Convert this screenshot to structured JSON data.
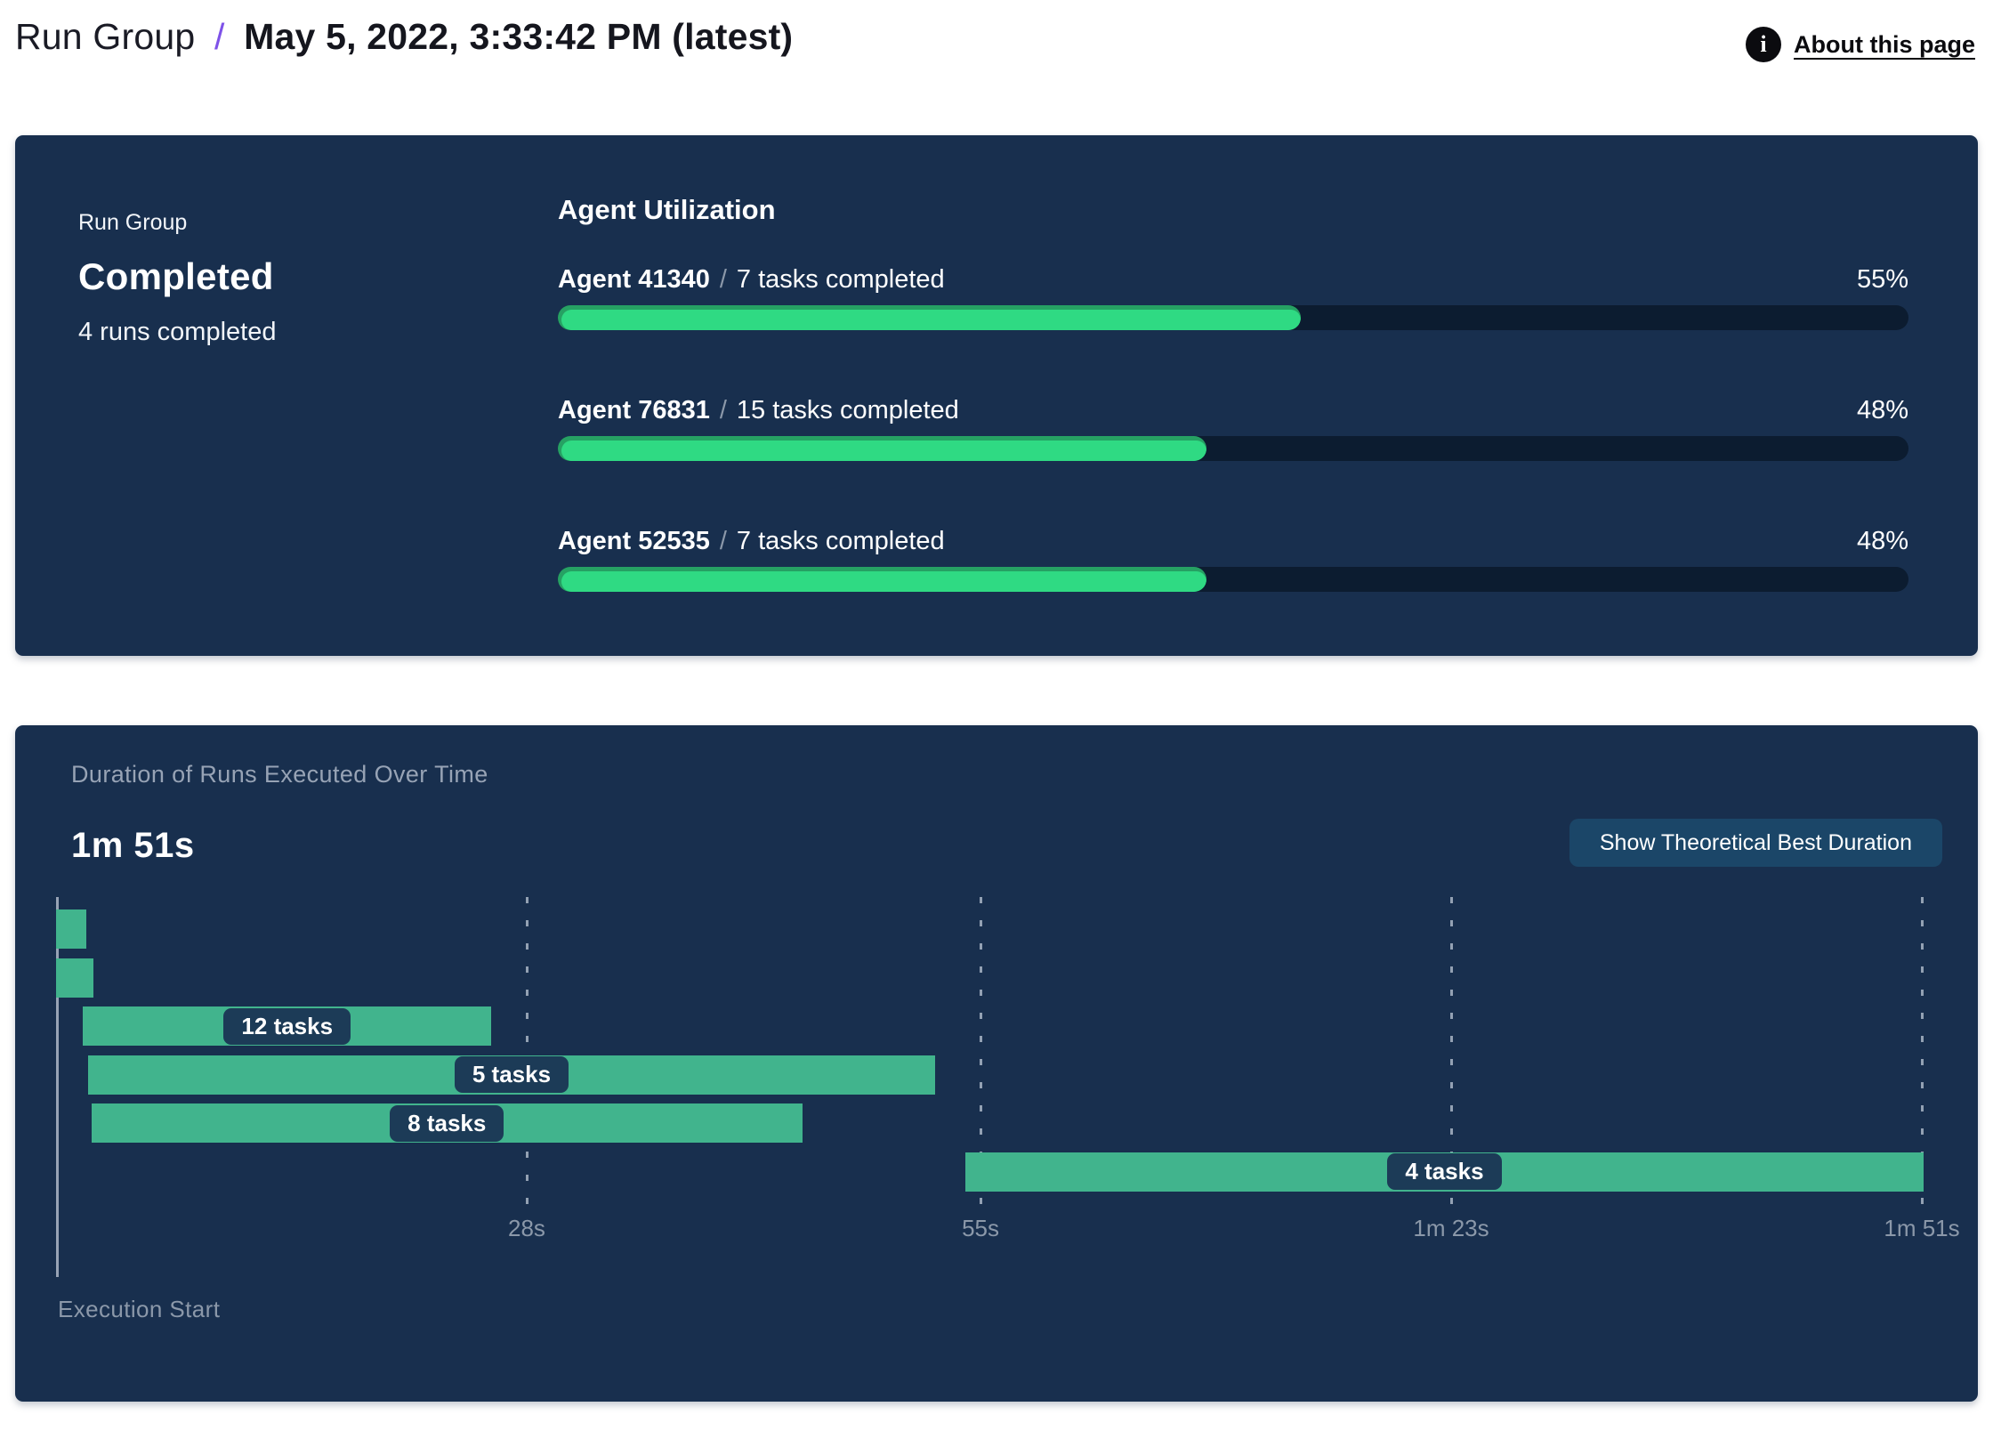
{
  "header": {
    "breadcrumb_root": "Run Group",
    "separator": "/",
    "title": "May 5, 2022, 3:33:42 PM (latest)",
    "about_link": "About this page",
    "info_icon_glyph": "i"
  },
  "status_card": {
    "label": "Run Group",
    "status": "Completed",
    "runs_completed": "4 runs completed"
  },
  "agent_utilization": {
    "title": "Agent Utilization",
    "agents": [
      {
        "name": "Agent 41340",
        "separator": "/",
        "tasks": "7 tasks completed",
        "percent": 55,
        "percent_label": "55%"
      },
      {
        "name": "Agent 76831",
        "separator": "/",
        "tasks": "15 tasks completed",
        "percent": 48,
        "percent_label": "48%"
      },
      {
        "name": "Agent 52535",
        "separator": "/",
        "tasks": "7 tasks completed",
        "percent": 48,
        "percent_label": "48%"
      }
    ]
  },
  "duration_panel": {
    "title": "Duration of Runs Executed Over Time",
    "total_duration": "1m 51s",
    "button_label": "Show Theoretical Best Duration",
    "axis_caption": "Execution Start"
  },
  "chart_data": {
    "type": "gantt",
    "title": "Duration of Runs Executed Over Time",
    "total_duration_label": "1m 51s",
    "time_domain_seconds": [
      0,
      111
    ],
    "x_ticks": [
      {
        "t": 28,
        "label": "28s"
      },
      {
        "t": 55,
        "label": "55s"
      },
      {
        "t": 83,
        "label": "1m 23s"
      },
      {
        "t": 111,
        "label": "1m 51s"
      }
    ],
    "bars": [
      {
        "start": 0,
        "end": 1.8,
        "label": ""
      },
      {
        "start": 0,
        "end": 2.2,
        "label": ""
      },
      {
        "start": 1.6,
        "end": 25.9,
        "label": "12 tasks"
      },
      {
        "start": 1.9,
        "end": 52.3,
        "label": "5 tasks"
      },
      {
        "start": 2.1,
        "end": 44.4,
        "label": "8 tasks"
      },
      {
        "start": 54.1,
        "end": 111.1,
        "label": "4 tasks"
      }
    ],
    "xlabel": "Execution Start",
    "colors": {
      "bar": "#41B48D",
      "pill_bg": "#1C3B57",
      "panel_bg": "#182F4E",
      "progress_fill": "#2FDA83",
      "progress_fill_dark": "#26A163",
      "progress_track": "#0C1C30",
      "accent_purple": "#7E52E8",
      "button_bg": "#1B4668",
      "muted_text": "#97A3B5",
      "axis_text": "#8B98A9"
    }
  }
}
